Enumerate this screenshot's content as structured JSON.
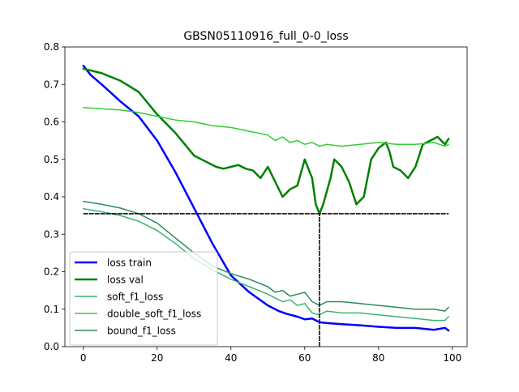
{
  "chart_data": {
    "type": "line",
    "title": "GBSN05110916_full_0-0_loss",
    "xlabel": "",
    "ylabel": "",
    "xlim": [
      -5,
      104
    ],
    "ylim": [
      0.0,
      0.8
    ],
    "x_ticks": [
      0,
      20,
      40,
      60,
      80,
      100
    ],
    "y_ticks": [
      0.0,
      0.1,
      0.2,
      0.3,
      0.4,
      0.5,
      0.6,
      0.7,
      0.8
    ],
    "x_tick_labels": [
      "0",
      "20",
      "40",
      "60",
      "80",
      "100"
    ],
    "y_tick_labels": [
      "0.0",
      "0.1",
      "0.2",
      "0.3",
      "0.4",
      "0.5",
      "0.6",
      "0.7",
      "0.8"
    ],
    "grid": false,
    "legend_position": "lower-left",
    "hline": {
      "y": 0.355,
      "x_start": 0,
      "x_end": 99
    },
    "vline": {
      "x": 64,
      "y_start": 0.0,
      "y_end": 0.355
    },
    "series": [
      {
        "name": "loss train",
        "color": "#0000ff",
        "width": 2.5,
        "points": [
          [
            0,
            0.75
          ],
          [
            2,
            0.725
          ],
          [
            5,
            0.7
          ],
          [
            10,
            0.655
          ],
          [
            15,
            0.615
          ],
          [
            20,
            0.55
          ],
          [
            25,
            0.465
          ],
          [
            30,
            0.37
          ],
          [
            35,
            0.275
          ],
          [
            40,
            0.19
          ],
          [
            45,
            0.145
          ],
          [
            50,
            0.11
          ],
          [
            53,
            0.095
          ],
          [
            55,
            0.088
          ],
          [
            58,
            0.08
          ],
          [
            60,
            0.073
          ],
          [
            62,
            0.075
          ],
          [
            64,
            0.065
          ],
          [
            66,
            0.063
          ],
          [
            70,
            0.06
          ],
          [
            75,
            0.057
          ],
          [
            80,
            0.053
          ],
          [
            85,
            0.05
          ],
          [
            90,
            0.05
          ],
          [
            95,
            0.045
          ],
          [
            98,
            0.05
          ],
          [
            99,
            0.043
          ]
        ]
      },
      {
        "name": "loss val",
        "color": "#008000",
        "width": 2.5,
        "points": [
          [
            0,
            0.742
          ],
          [
            5,
            0.73
          ],
          [
            10,
            0.71
          ],
          [
            15,
            0.68
          ],
          [
            20,
            0.62
          ],
          [
            25,
            0.57
          ],
          [
            30,
            0.51
          ],
          [
            32,
            0.5
          ],
          [
            34,
            0.49
          ],
          [
            36,
            0.48
          ],
          [
            38,
            0.475
          ],
          [
            40,
            0.48
          ],
          [
            42,
            0.485
          ],
          [
            44,
            0.475
          ],
          [
            46,
            0.47
          ],
          [
            48,
            0.45
          ],
          [
            50,
            0.48
          ],
          [
            52,
            0.44
          ],
          [
            54,
            0.4
          ],
          [
            56,
            0.42
          ],
          [
            58,
            0.43
          ],
          [
            60,
            0.5
          ],
          [
            62,
            0.45
          ],
          [
            63,
            0.38
          ],
          [
            64,
            0.355
          ],
          [
            65,
            0.38
          ],
          [
            67,
            0.45
          ],
          [
            68,
            0.5
          ],
          [
            70,
            0.48
          ],
          [
            72,
            0.44
          ],
          [
            74,
            0.38
          ],
          [
            76,
            0.4
          ],
          [
            78,
            0.5
          ],
          [
            80,
            0.53
          ],
          [
            82,
            0.545
          ],
          [
            83,
            0.52
          ],
          [
            84,
            0.48
          ],
          [
            86,
            0.47
          ],
          [
            88,
            0.45
          ],
          [
            90,
            0.48
          ],
          [
            92,
            0.54
          ],
          [
            94,
            0.55
          ],
          [
            96,
            0.56
          ],
          [
            98,
            0.54
          ],
          [
            99,
            0.555
          ]
        ]
      },
      {
        "name": "soft_f1_loss",
        "color": "#3cb371",
        "width": 1.5,
        "points": [
          [
            0,
            0.368
          ],
          [
            5,
            0.36
          ],
          [
            10,
            0.35
          ],
          [
            15,
            0.335
          ],
          [
            20,
            0.31
          ],
          [
            25,
            0.275
          ],
          [
            30,
            0.235
          ],
          [
            35,
            0.205
          ],
          [
            40,
            0.18
          ],
          [
            45,
            0.16
          ],
          [
            50,
            0.14
          ],
          [
            52,
            0.13
          ],
          [
            54,
            0.12
          ],
          [
            56,
            0.125
          ],
          [
            58,
            0.11
          ],
          [
            60,
            0.115
          ],
          [
            62,
            0.09
          ],
          [
            64,
            0.085
          ],
          [
            66,
            0.095
          ],
          [
            70,
            0.09
          ],
          [
            75,
            0.09
          ],
          [
            80,
            0.085
          ],
          [
            85,
            0.08
          ],
          [
            90,
            0.075
          ],
          [
            95,
            0.07
          ],
          [
            98,
            0.07
          ],
          [
            99,
            0.08
          ]
        ]
      },
      {
        "name": "double_soft_f1_loss",
        "color": "#32cd32",
        "width": 1.5,
        "points": [
          [
            0,
            0.638
          ],
          [
            5,
            0.635
          ],
          [
            10,
            0.632
          ],
          [
            15,
            0.625
          ],
          [
            20,
            0.615
          ],
          [
            25,
            0.605
          ],
          [
            30,
            0.6
          ],
          [
            35,
            0.59
          ],
          [
            40,
            0.585
          ],
          [
            45,
            0.575
          ],
          [
            50,
            0.565
          ],
          [
            52,
            0.55
          ],
          [
            54,
            0.56
          ],
          [
            56,
            0.545
          ],
          [
            58,
            0.55
          ],
          [
            60,
            0.54
          ],
          [
            62,
            0.545
          ],
          [
            64,
            0.535
          ],
          [
            66,
            0.54
          ],
          [
            70,
            0.535
          ],
          [
            75,
            0.54
          ],
          [
            80,
            0.545
          ],
          [
            85,
            0.54
          ],
          [
            90,
            0.54
          ],
          [
            95,
            0.545
          ],
          [
            98,
            0.535
          ],
          [
            99,
            0.54
          ]
        ]
      },
      {
        "name": "bound_f1_loss",
        "color": "#2e8b57",
        "width": 1.5,
        "points": [
          [
            0,
            0.388
          ],
          [
            5,
            0.38
          ],
          [
            10,
            0.37
          ],
          [
            15,
            0.355
          ],
          [
            20,
            0.33
          ],
          [
            25,
            0.29
          ],
          [
            30,
            0.25
          ],
          [
            35,
            0.215
          ],
          [
            40,
            0.195
          ],
          [
            45,
            0.18
          ],
          [
            50,
            0.16
          ],
          [
            52,
            0.145
          ],
          [
            54,
            0.15
          ],
          [
            56,
            0.135
          ],
          [
            58,
            0.14
          ],
          [
            60,
            0.145
          ],
          [
            62,
            0.12
          ],
          [
            64,
            0.11
          ],
          [
            66,
            0.12
          ],
          [
            70,
            0.12
          ],
          [
            75,
            0.115
          ],
          [
            80,
            0.11
          ],
          [
            85,
            0.105
          ],
          [
            90,
            0.1
          ],
          [
            95,
            0.1
          ],
          [
            98,
            0.095
          ],
          [
            99,
            0.105
          ]
        ]
      }
    ]
  }
}
